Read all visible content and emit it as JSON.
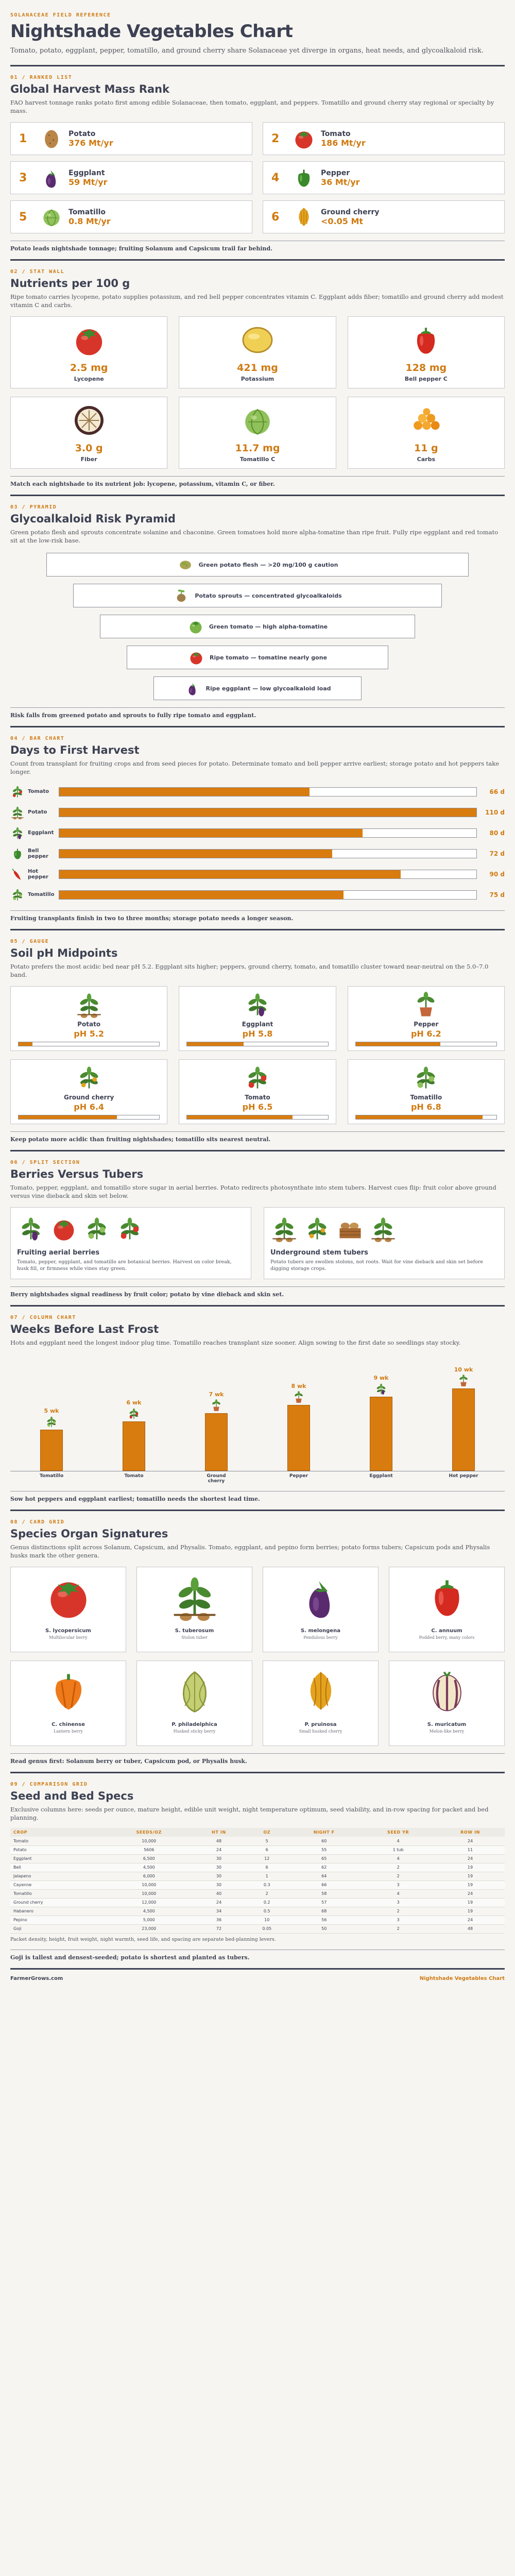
{
  "header": {
    "kicker": "SOLANACEAE FIELD REFERENCE",
    "title": "Nightshade Vegetables Chart",
    "intro": "Tomato, potato, eggplant, pepper, tomatillo, and ground cherry share Solanaceae yet diverge in organs, heat needs, and glycoalkaloid risk."
  },
  "colors": {
    "accent": "#d07a12",
    "ink": "#3d4153",
    "bar": "#d97c0f"
  },
  "ranked": {
    "kicker": "01 / RANKED LIST",
    "title": "Global Harvest Mass Rank",
    "intro": "FAO harvest tonnage ranks potato first among edible Solanaceae, then tomato, eggplant, and peppers. Tomatillo and ground cherry stay regional or specialty by mass.",
    "items": [
      {
        "rank": "1",
        "name": "Potato",
        "value": "376 Mt/yr",
        "icon": "potato-icon"
      },
      {
        "rank": "2",
        "name": "Tomato",
        "value": "186 Mt/yr",
        "icon": "tomato-icon"
      },
      {
        "rank": "3",
        "name": "Eggplant",
        "value": "59 Mt/yr",
        "icon": "eggplant-icon"
      },
      {
        "rank": "4",
        "name": "Pepper",
        "value": "36 Mt/yr",
        "icon": "pepper-icon"
      },
      {
        "rank": "5",
        "name": "Tomatillo",
        "value": "0.8 Mt/yr",
        "icon": "tomatillo-icon"
      },
      {
        "rank": "6",
        "name": "Ground cherry",
        "value": "<0.05 Mt",
        "icon": "ground-cherry-icon"
      }
    ],
    "caption": "Potato leads nightshade tonnage; fruiting Solanum and Capsicum trail far behind."
  },
  "nutrients": {
    "kicker": "02 / STAT WALL",
    "title": "Nutrients per 100 g",
    "intro": "Ripe tomato carries lycopene, potato supplies potassium, and red bell pepper concentrates vitamin C. Eggplant adds fiber; tomatillo and ground cherry add modest vitamin C and carbs.",
    "items": [
      {
        "value": "2.5 mg",
        "label": "Lycopene",
        "icon": "tomato-icon"
      },
      {
        "value": "421 mg",
        "label": "Potassium",
        "icon": "potato-slice-icon"
      },
      {
        "value": "128 mg",
        "label": "Bell pepper C",
        "icon": "bell-pepper-icon"
      },
      {
        "value": "3.0 g",
        "label": "Fiber",
        "icon": "eggplant-slice-icon"
      },
      {
        "value": "11.7 mg",
        "label": "Tomatillo C",
        "icon": "tomatillo-icon"
      },
      {
        "value": "11 g",
        "label": "Carbs",
        "icon": "ground-cherry-pile-icon"
      }
    ],
    "caption": "Match each nightshade to its nutrient job: lycopene, potassium, vitamin C, or fiber."
  },
  "pyramid": {
    "kicker": "03 / PYRAMID",
    "title": "Glycoalkaloid Risk Pyramid",
    "intro": "Green potato flesh and sprouts concentrate solanine and chaconine. Green tomatoes hold more alpha-tomatine than ripe fruit. Fully ripe eggplant and red tomato sit at the low-risk base.",
    "rows": [
      {
        "label": "Green potato flesh — >20 mg/100 g caution",
        "level": 1.0,
        "icon": "green-potato-icon"
      },
      {
        "label": "Potato sprouts — concentrated glycoalkaloids",
        "level": 0.8,
        "icon": "sprout-icon"
      },
      {
        "label": "Green tomato — high alpha-tomatine",
        "level": 0.6,
        "icon": "green-tomato-icon"
      },
      {
        "label": "Ripe tomato — tomatine nearly gone",
        "level": 0.4,
        "icon": "tomato-icon"
      },
      {
        "label": "Ripe eggplant — low glycoalkaloid load",
        "level": 0.2,
        "icon": "eggplant-icon"
      }
    ],
    "caption": "Risk falls from greened potato and sprouts to fully ripe tomato and eggplant."
  },
  "harvest": {
    "kicker": "04 / BAR CHART",
    "title": "Days to First Harvest",
    "intro": "Count from transplant for fruiting crops and from seed pieces for potato. Determinate tomato and bell pepper arrive earliest; storage potato and hot peppers take longer.",
    "caption": "Fruiting transplants finish in two to three months; storage potato needs a longer season."
  },
  "chart_data": {
    "type": "bar",
    "categories": [
      "Tomato",
      "Potato",
      "Eggplant",
      "Bell pepper",
      "Hot pepper",
      "Tomatillo"
    ],
    "values": [
      66,
      110,
      80,
      72,
      90,
      75
    ],
    "labels": [
      "66 d",
      "110 d",
      "80 d",
      "72 d",
      "90 d",
      "75 d"
    ],
    "icons": [
      "tomato-plant-icon",
      "potato-plant-icon",
      "eggplant-plant-icon",
      "pepper-icon",
      "hot-pepper-icon",
      "tomatillo-plant-icon"
    ],
    "xlim": [
      0,
      110
    ]
  },
  "ph": {
    "kicker": "05 / GAUGE",
    "title": "Soil pH Midpoints",
    "intro": "Potato prefers the most acidic bed near pH 5.2. Eggplant sits higher; peppers, ground cherry, tomato, and tomatillo cluster toward near-neutral on the 5.0–7.0 band.",
    "range": [
      5.0,
      7.0
    ],
    "items": [
      {
        "name": "Potato",
        "label": "pH 5.2",
        "value": 5.2,
        "icon": "potato-plant-icon"
      },
      {
        "name": "Eggplant",
        "label": "pH 5.8",
        "value": 5.8,
        "icon": "eggplant-plant-icon"
      },
      {
        "name": "Pepper",
        "label": "pH 6.2",
        "value": 6.2,
        "icon": "potted-plant-icon"
      },
      {
        "name": "Ground cherry",
        "label": "pH 6.4",
        "value": 6.4,
        "icon": "ground-cherry-plant-icon"
      },
      {
        "name": "Tomato",
        "label": "pH 6.5",
        "value": 6.5,
        "icon": "tomato-plant-icon"
      },
      {
        "name": "Tomatillo",
        "label": "pH 6.8",
        "value": 6.8,
        "icon": "tomatillo-plant-icon"
      }
    ],
    "caption": "Keep potato more acidic than fruiting nightshades; tomatillo sits nearest neutral."
  },
  "split": {
    "kicker": "06 / SPLIT SECTION",
    "title": "Berries Versus Tubers",
    "intro": "Tomato, pepper, eggplant, and tomatillo store sugar in aerial berries. Potato redirects photosynthate into stem tubers. Harvest cues flip: fruit color above ground versus vine dieback and skin set below.",
    "left": {
      "title": "Fruiting aerial berries",
      "desc": "Tomato, pepper, eggplant, and tomatillo are botanical berries. Harvest on color break, husk fill, or firmness while vines stay green."
    },
    "right": {
      "title": "Underground stem tubers",
      "desc": "Potato tubers are swollen stolons, not roots. Wait for vine dieback and skin set before digging storage crops."
    },
    "caption": "Berry nightshades signal readiness by fruit color; potato by vine dieback and skin set."
  },
  "frost": {
    "kicker": "07 / COLUMN CHART",
    "title": "Weeks Before Last Frost",
    "intro": "Hots and eggplant need the longest indoor plug time. Tomatillo reaches transplant size sooner. Align sowing to the first date so seedlings stay stocky.",
    "caption": "Sow hot peppers and eggplant earliest; tomatillo needs the shortest lead time.",
    "columns": [
      {
        "name": "Tomatillo",
        "label": "5 wk",
        "value": 5
      },
      {
        "name": "Tomato",
        "label": "6 wk",
        "value": 6
      },
      {
        "name": "Ground cherry",
        "label": "7 wk",
        "value": 7
      },
      {
        "name": "Pepper",
        "label": "8 wk",
        "value": 8
      },
      {
        "name": "Eggplant",
        "label": "9 wk",
        "value": 9
      },
      {
        "name": "Hot pepper",
        "label": "10 wk",
        "value": 10
      }
    ],
    "max": 10
  },
  "species": {
    "kicker": "08 / CARD GRID",
    "title": "Species Organ Signatures",
    "intro": "Genus distinctions split across Solanum, Capsicum, and Physalis. Tomato, eggplant, and pepino form berries; potato forms tubers; Capsicum pods and Physalis husks mark the other genera.",
    "items": [
      {
        "name": "S. lycopersicum",
        "desc": "Multilocular berry",
        "icon": "tomato-icon"
      },
      {
        "name": "S. tuberosum",
        "desc": "Stolon tuber",
        "icon": "potato-plant-icon"
      },
      {
        "name": "S. melongena",
        "desc": "Pendulous berry",
        "icon": "eggplant-icon"
      },
      {
        "name": "C. annuum",
        "desc": "Podded berry, many colors",
        "icon": "bell-pepper-icon"
      },
      {
        "name": "C. chinense",
        "desc": "Lantern berry",
        "icon": "habanero-icon"
      },
      {
        "name": "P. philadelphica",
        "desc": "Husked sticky berry",
        "icon": "tomatillo-husk-icon"
      },
      {
        "name": "P. pruinosa",
        "desc": "Small husked cherry",
        "icon": "ground-cherry-icon"
      },
      {
        "name": "S. muricatum",
        "desc": "Melon-like berry",
        "icon": "pepino-icon"
      }
    ],
    "caption": "Read genus first: Solanum berry or tuber, Capsicum pod, or Physalis husk."
  },
  "specs": {
    "kicker": "09 / COMPARISON GRID",
    "title": "Seed and Bed Specs",
    "intro": "Exclusive columns here: seeds per ounce, mature height, edible unit weight, night temperature optimum, seed viability, and in-row spacing for packet and bed planning.",
    "columns": [
      "CROP",
      "SEEDS/OZ",
      "HT IN",
      "OZ",
      "NIGHT F",
      "SEED YR",
      "ROW IN"
    ],
    "rows": [
      [
        "Tomato",
        "10,000",
        "48",
        "5",
        "60",
        "4",
        "24"
      ],
      [
        "Potato",
        "5606",
        "24",
        "6",
        "55",
        "1 tub",
        "11"
      ],
      [
        "Eggplant",
        "6,500",
        "30",
        "12",
        "65",
        "4",
        "24"
      ],
      [
        "Bell",
        "4,500",
        "30",
        "6",
        "62",
        "2",
        "19"
      ],
      [
        "Jalapeno",
        "6,000",
        "30",
        "1",
        "64",
        "2",
        "19"
      ],
      [
        "Cayenne",
        "10,000",
        "30",
        "0.3",
        "66",
        "3",
        "19"
      ],
      [
        "Tomatillo",
        "10,000",
        "40",
        "2",
        "58",
        "4",
        "24"
      ],
      [
        "Ground cherry",
        "12,000",
        "24",
        "0.2",
        "57",
        "3",
        "19"
      ],
      [
        "Habanero",
        "4,500",
        "34",
        "0.5",
        "68",
        "2",
        "19"
      ],
      [
        "Pepino",
        "5,000",
        "36",
        "10",
        "56",
        "3",
        "24"
      ],
      [
        "Goji",
        "23,000",
        "72",
        "0.05",
        "50",
        "2",
        "48"
      ]
    ],
    "note": "Packet density, height, fruit weight, night warmth, seed life, and spacing are separate bed-planning levers.",
    "caption": "Goji is tallest and densest-seeded; potato is shortest and planted as tubers."
  },
  "footer": {
    "left": "FarmerGrows.com",
    "right": "Nightshade Vegetables Chart"
  }
}
